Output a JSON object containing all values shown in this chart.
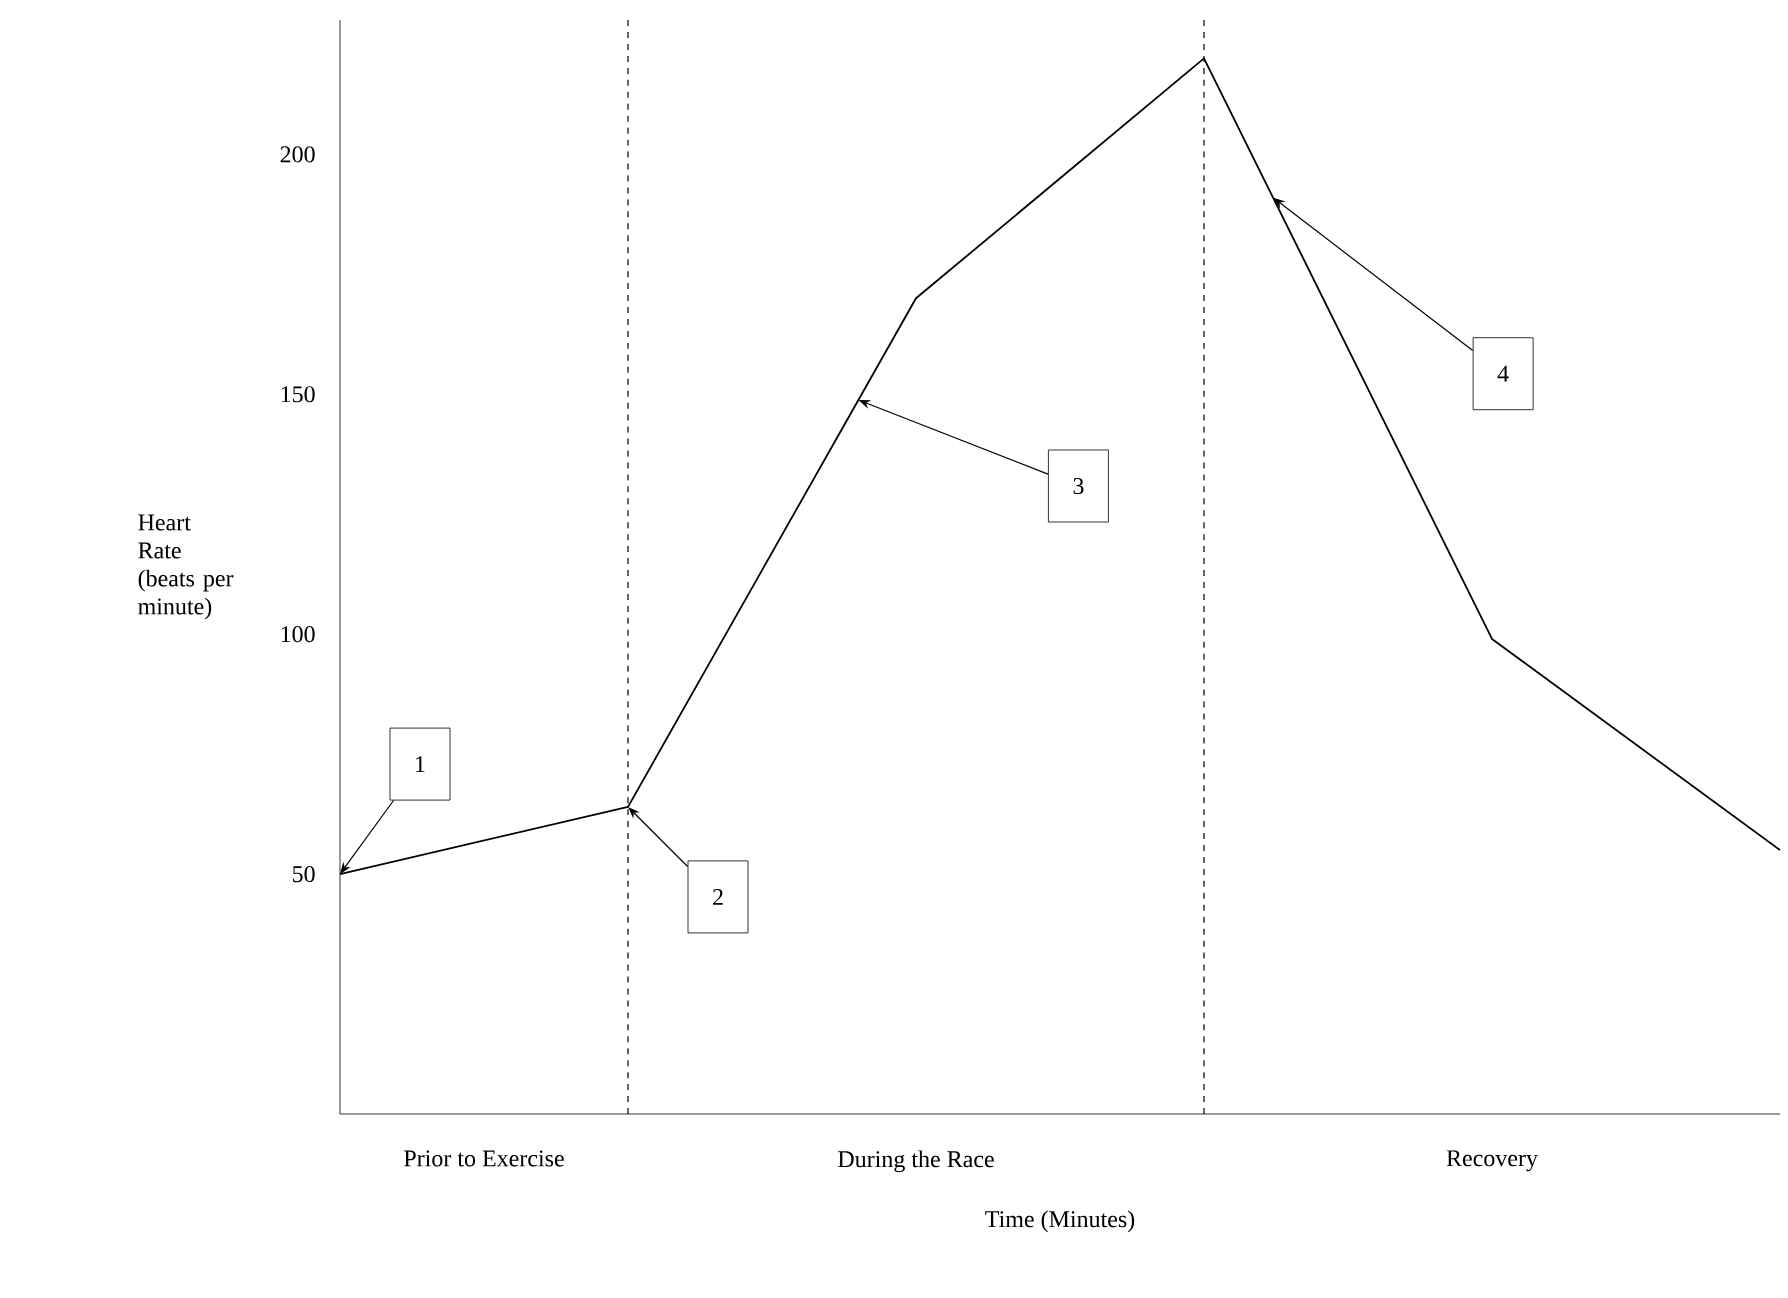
{
  "chart_data": {
    "type": "line",
    "xlabel": "Time (Minutes)",
    "ylabel": "Heart Rate (beats per minute)",
    "categories": [
      null,
      null,
      null,
      null,
      null,
      null
    ],
    "values": [
      50,
      64,
      170,
      220,
      99,
      55
    ],
    "color": "#000000",
    "marker": "none",
    "line_style": "solid",
    "ylim": [
      0,
      228
    ],
    "yticks": [
      50,
      100,
      150,
      200
    ],
    "grid": false,
    "annotations": [
      "Prior to Exercise",
      "During the Race",
      "Recovery",
      "1",
      "2",
      "3",
      "4"
    ]
  }
}
